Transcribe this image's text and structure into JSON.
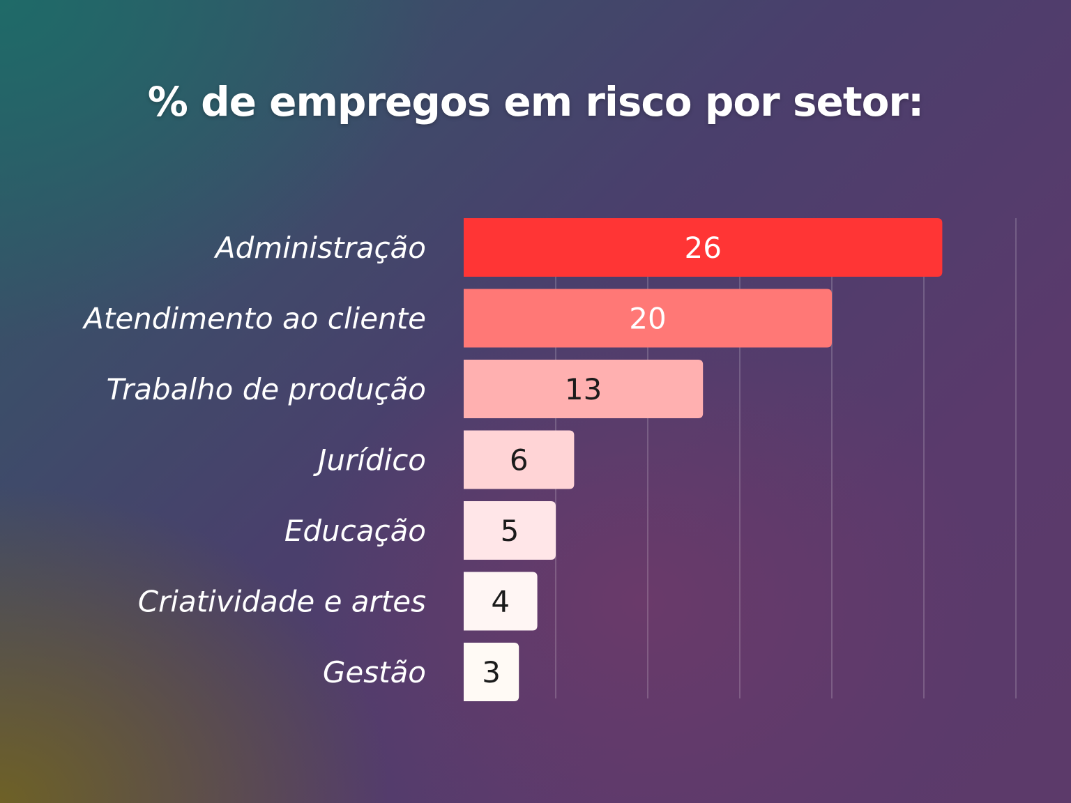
{
  "chart_data": {
    "type": "bar",
    "orientation": "horizontal",
    "title": "% de empregos em risco por setor:",
    "categories": [
      "Administração",
      "Atendimento ao cliente",
      "Trabalho de produção",
      "Jurídico",
      "Educação",
      "Criatividade e artes",
      "Gestão"
    ],
    "values": [
      26,
      20,
      13,
      6,
      5,
      4,
      3
    ],
    "xlim": [
      0,
      30
    ],
    "grid": true,
    "legend": "none",
    "bar_colors": [
      "#ff3535",
      "#ff7876",
      "#ffb0b0",
      "#ffd4d6",
      "#ffe6e8",
      "#fff6f4",
      "#fffaf5"
    ],
    "value_label_colors": [
      "#ffffff",
      "#ffffff",
      "#1b1b1b",
      "#1b1b1b",
      "#1b1b1b",
      "#1b1b1b",
      "#1b1b1b"
    ]
  }
}
